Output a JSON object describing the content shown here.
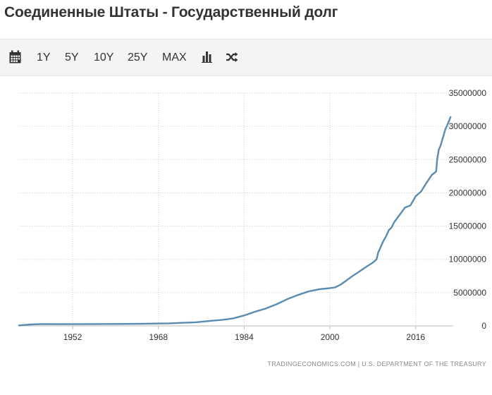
{
  "page": {
    "title": "Соединенные Штаты - Государственный долг"
  },
  "toolbar": {
    "calendar_icon": "calendar-icon",
    "ranges": [
      "1Y",
      "5Y",
      "10Y",
      "25Y",
      "MAX"
    ],
    "chart_type_icon": "bar-chart-icon",
    "compare_icon": "shuffle-icon"
  },
  "colors": {
    "line": "#5a8bb0",
    "grid": "#cfcfcf",
    "text": "#333333",
    "toolbar_bg": "#f4f4f4"
  },
  "source": "TRADINGECONOMICS.COM  |  U.S. DEPARTMENT OF THE TREASURY",
  "chart_data": {
    "type": "line",
    "title": "Соединенные Штаты - Государственный долг",
    "xlabel": "",
    "ylabel": "",
    "xlim": [
      1942,
      2023
    ],
    "ylim": [
      0,
      35000000
    ],
    "x_ticks": [
      1952,
      1968,
      1984,
      2000,
      2016
    ],
    "y_ticks": [
      0,
      5000000,
      10000000,
      15000000,
      20000000,
      25000000,
      30000000,
      35000000
    ],
    "y_tick_labels": [
      "0",
      "5000000",
      "10000000",
      "15000000",
      "20000000",
      "25000000",
      "30000000",
      "35000000"
    ],
    "grid": true,
    "legend": "none",
    "series": [
      {
        "x": [
          1942,
          1944,
          1946,
          1950,
          1955,
          1960,
          1965,
          1970,
          1975,
          1978,
          1980,
          1982,
          1984,
          1986,
          1988,
          1990,
          1992,
          1994,
          1996,
          1998,
          2000,
          2001,
          2002,
          2003,
          2004,
          2005,
          2006,
          2007,
          2008,
          2008.7,
          2009,
          2009.5,
          2010,
          2010.5,
          2011,
          2011.5,
          2012,
          2013,
          2014,
          2015,
          2016,
          2017,
          2018,
          2019,
          2019.8,
          2020,
          2020.3,
          2020.6,
          2021,
          2021.5,
          2022,
          2022.5
        ],
        "values": [
          72000,
          200000,
          270000,
          257000,
          274000,
          290000,
          320000,
          380000,
          540000,
          770000,
          908000,
          1140000,
          1570000,
          2120000,
          2600000,
          3230000,
          4000000,
          4640000,
          5180000,
          5500000,
          5670000,
          5800000,
          6220000,
          6780000,
          7380000,
          7900000,
          8450000,
          9000000,
          9500000,
          10000000,
          11000000,
          11900000,
          12800000,
          13500000,
          14400000,
          14800000,
          15600000,
          16700000,
          17800000,
          18100000,
          19500000,
          20200000,
          21500000,
          22700000,
          23200000,
          25000000,
          26500000,
          27000000,
          28100000,
          29500000,
          30400000,
          31400000
        ]
      }
    ]
  }
}
